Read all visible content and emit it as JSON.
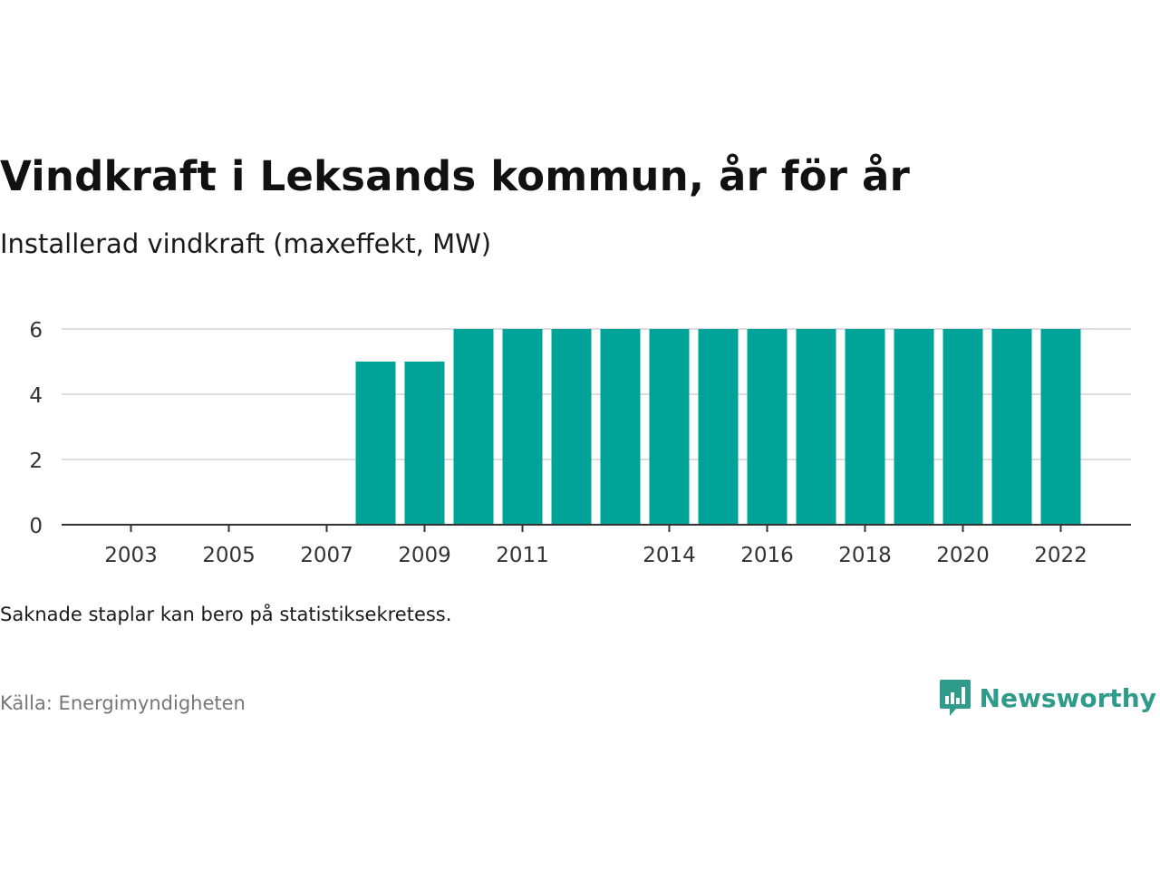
{
  "header": {
    "title": "Vindkraft i Leksands kommun, år för år",
    "subtitle": "Installerad vindkraft (maxeffekt, MW)"
  },
  "footer": {
    "note": "Saknade staplar kan bero på statistiksekretess.",
    "source": "Källa: Energimyndigheten",
    "brand": "Newsworthy",
    "brand_icon": "bar-chart-speech-bubble-icon"
  },
  "colors": {
    "bar": "#00a398",
    "grid": "#dddddd",
    "axis": "#333333",
    "brand": "#2f9b8b"
  },
  "chart_data": {
    "type": "bar",
    "categories": [
      "2002",
      "2003",
      "2004",
      "2005",
      "2006",
      "2007",
      "2008",
      "2009",
      "2010",
      "2011",
      "2012",
      "2013",
      "2014",
      "2015",
      "2016",
      "2017",
      "2018",
      "2019",
      "2020",
      "2021",
      "2022"
    ],
    "values": [
      0,
      0,
      0,
      0,
      0,
      0,
      5,
      5,
      6,
      6,
      6,
      6,
      6,
      6,
      6,
      6,
      6,
      6,
      6,
      6,
      6
    ],
    "x_tick_labels": [
      "2003",
      "2005",
      "2007",
      "2009",
      "2011",
      "2014",
      "2016",
      "2018",
      "2020",
      "2022"
    ],
    "y_ticks": [
      0,
      2,
      4,
      6
    ],
    "ylim": [
      0,
      6
    ],
    "grid": true,
    "legend": "none"
  }
}
